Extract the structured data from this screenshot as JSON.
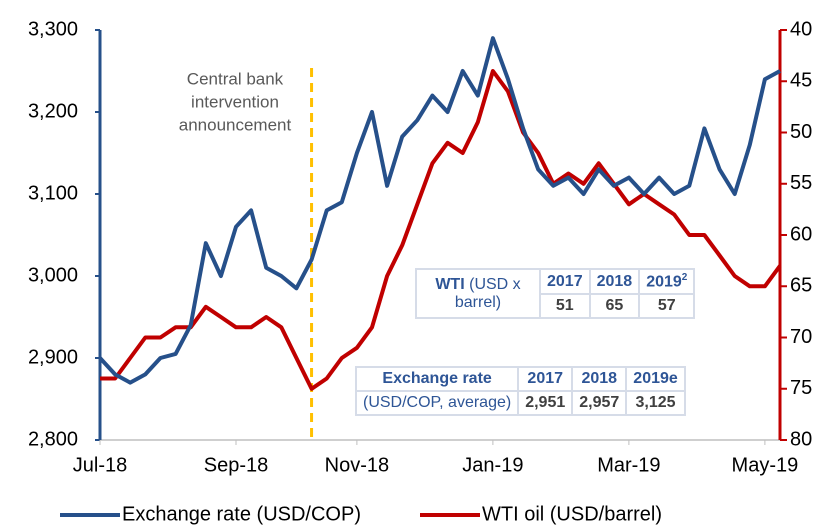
{
  "chart_data": {
    "type": "line",
    "categories": [
      "Jul-18",
      null,
      null,
      null,
      null,
      null,
      null,
      null,
      null,
      "Sep-18",
      null,
      null,
      null,
      null,
      null,
      null,
      null,
      "Nov-18",
      null,
      null,
      null,
      null,
      null,
      null,
      null,
      null,
      "Jan-19",
      null,
      null,
      null,
      null,
      null,
      null,
      null,
      null,
      "Mar-19",
      null,
      null,
      null,
      null,
      null,
      null,
      null,
      null,
      "May-19",
      null
    ],
    "series": [
      {
        "name": "Exchange rate (USD/COP)",
        "color": "#26508a",
        "axis": "y",
        "values": [
          2900,
          2880,
          2870,
          2880,
          2900,
          2905,
          2940,
          3040,
          3000,
          3060,
          3080,
          3010,
          3000,
          2985,
          3020,
          3080,
          3090,
          3150,
          3200,
          3110,
          3170,
          3190,
          3220,
          3200,
          3250,
          3220,
          3290,
          3240,
          3180,
          3130,
          3110,
          3120,
          3100,
          3130,
          3110,
          3120,
          3100,
          3120,
          3100,
          3110,
          3180,
          3130,
          3100,
          3160,
          3240,
          3250
        ]
      },
      {
        "name": "WTI oil (USD/barrel)",
        "color": "#c00000",
        "axis": "y2",
        "values": [
          74,
          74,
          72,
          70,
          70,
          69,
          69,
          67,
          68,
          69,
          69,
          68,
          69,
          72,
          75,
          74,
          72,
          71,
          69,
          64,
          61,
          57,
          53,
          51,
          52,
          49,
          44,
          46,
          50,
          52,
          55,
          54,
          55,
          53,
          55,
          57,
          56,
          57,
          58,
          60,
          60,
          62,
          64,
          65,
          65,
          63
        ]
      }
    ],
    "ylim": [
      2800,
      3300
    ],
    "yticks": [
      {
        "value": 2800,
        "label": "2,800"
      },
      {
        "value": 2900,
        "label": "2,900"
      },
      {
        "value": 3000,
        "label": "3,000"
      },
      {
        "value": 3100,
        "label": "3,100"
      },
      {
        "value": 3200,
        "label": "3,200"
      },
      {
        "value": 3300,
        "label": "3,300"
      }
    ],
    "y2lim": [
      40,
      80
    ],
    "y2_inverted": true,
    "y2ticks": [
      40,
      45,
      50,
      55,
      60,
      65,
      70,
      75,
      80
    ],
    "annotation": [
      "Central bank",
      "intervention",
      "announcement"
    ],
    "legend": "bottom",
    "tables": [
      {
        "label_bold": "WTI",
        "label": "(USD x barrel)",
        "header": [
          "2017",
          "2018",
          "2019"
        ],
        "header_note": "2",
        "values": [
          "51",
          "65",
          "57"
        ]
      },
      {
        "label_bold": "Exchange rate",
        "label": "(USD/COP, average)",
        "header": [
          "2017",
          "2018",
          "2019e"
        ],
        "values": [
          "2,951",
          "2,957",
          "3,125"
        ]
      }
    ]
  }
}
